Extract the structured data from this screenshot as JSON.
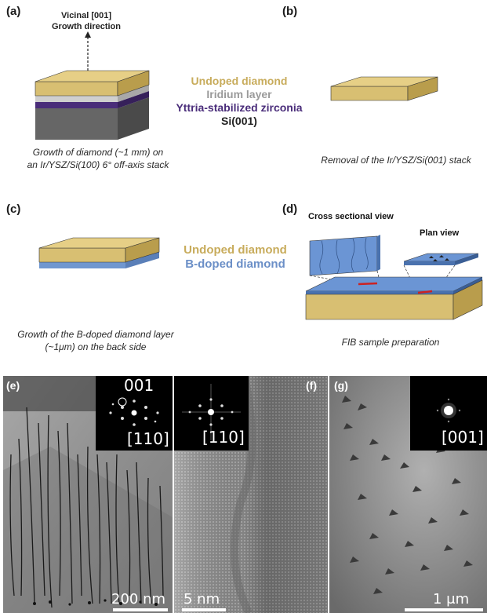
{
  "panel_a": {
    "label": "(a)",
    "arrow_label_line1": "Vicinal [001]",
    "arrow_label_line2": "Growth direction",
    "legend": {
      "undoped": "Undoped diamond",
      "iridium": "Iridium layer",
      "ysz": "Yttria-stabilized zirconia",
      "si": "Si(001)"
    },
    "caption_line1": "Growth of diamond (~1 mm) on",
    "caption_line2": "an Ir/YSZ/Si(100) 6° off-axis stack"
  },
  "panel_b": {
    "label": "(b)",
    "caption": "Removal of the Ir/YSZ/Si(001) stack"
  },
  "panel_c": {
    "label": "(c)",
    "legend": {
      "undoped": "Undoped diamond",
      "bdoped": "B-doped diamond"
    },
    "caption_line1": "Growth of the B-doped diamond layer",
    "caption_line2": "(~1μm) on the back side"
  },
  "panel_d": {
    "label": "(d)",
    "cross_view": "Cross sectional view",
    "plan_view": "Plan view",
    "caption": "FIB sample preparation"
  },
  "panel_e": {
    "label": "(e)",
    "inset_top": "001",
    "inset_bottom": "[110]",
    "scale": "200 nm"
  },
  "panel_f": {
    "label": "(f)",
    "inset_bottom": "[110]",
    "scale": "5 nm"
  },
  "panel_g": {
    "label": "(g)",
    "inset_bottom": "[001]",
    "scale": "1 μm"
  },
  "colors": {
    "undoped": "#c8ac5c",
    "iridium": "#9a9a9a",
    "ysz": "#4a2d7a",
    "si": "#6b6b6b",
    "bdoped": "#6b8fc7",
    "fib_mark": "#cc2222"
  }
}
